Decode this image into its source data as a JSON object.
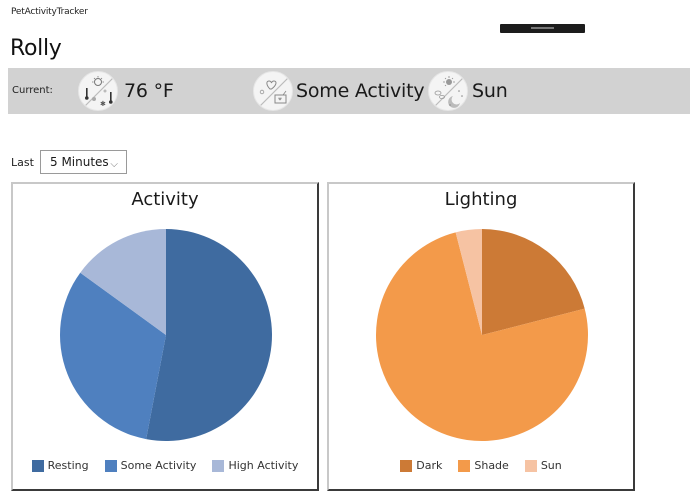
{
  "app": {
    "title": "PetActivityTracker"
  },
  "pet": {
    "name": "Rolly"
  },
  "current": {
    "label": "Current:",
    "temperature": {
      "icon": "temperature-weather-icon",
      "value": "76 °F"
    },
    "activity": {
      "icon": "activity-heart-icon",
      "value": "Some Activity"
    },
    "lighting": {
      "icon": "sun-moon-icon",
      "value": "Sun"
    }
  },
  "range": {
    "label": "Last",
    "selected": "5 Minutes",
    "chevron": "⌵"
  },
  "panels": {
    "activity": {
      "title": "Activity",
      "legend": [
        {
          "label": "Resting",
          "color": "#3f6ba0"
        },
        {
          "label": "Some Activity",
          "color": "#4f80bf"
        },
        {
          "label": "High Activity",
          "color": "#a8b8d8"
        }
      ]
    },
    "lighting": {
      "title": "Lighting",
      "legend": [
        {
          "label": "Dark",
          "color": "#cc7a36"
        },
        {
          "label": "Shade",
          "color": "#f39a4a"
        },
        {
          "label": "Sun",
          "color": "#f6c3a3"
        }
      ]
    }
  },
  "chart_data": [
    {
      "type": "pie",
      "title": "Activity",
      "categories": [
        "Resting",
        "Some Activity",
        "High Activity"
      ],
      "values": [
        53,
        32,
        15
      ],
      "colors": [
        "#3f6ba0",
        "#4f80bf",
        "#a8b8d8"
      ],
      "start_angle": "12 o'clock, clockwise",
      "legend_position": "bottom"
    },
    {
      "type": "pie",
      "title": "Lighting",
      "categories": [
        "Dark",
        "Shade",
        "Sun"
      ],
      "values": [
        21,
        75,
        4
      ],
      "colors": [
        "#cc7a36",
        "#f39a4a",
        "#f6c3a3"
      ],
      "start_angle": "12 o'clock, clockwise",
      "legend_position": "bottom"
    }
  ]
}
